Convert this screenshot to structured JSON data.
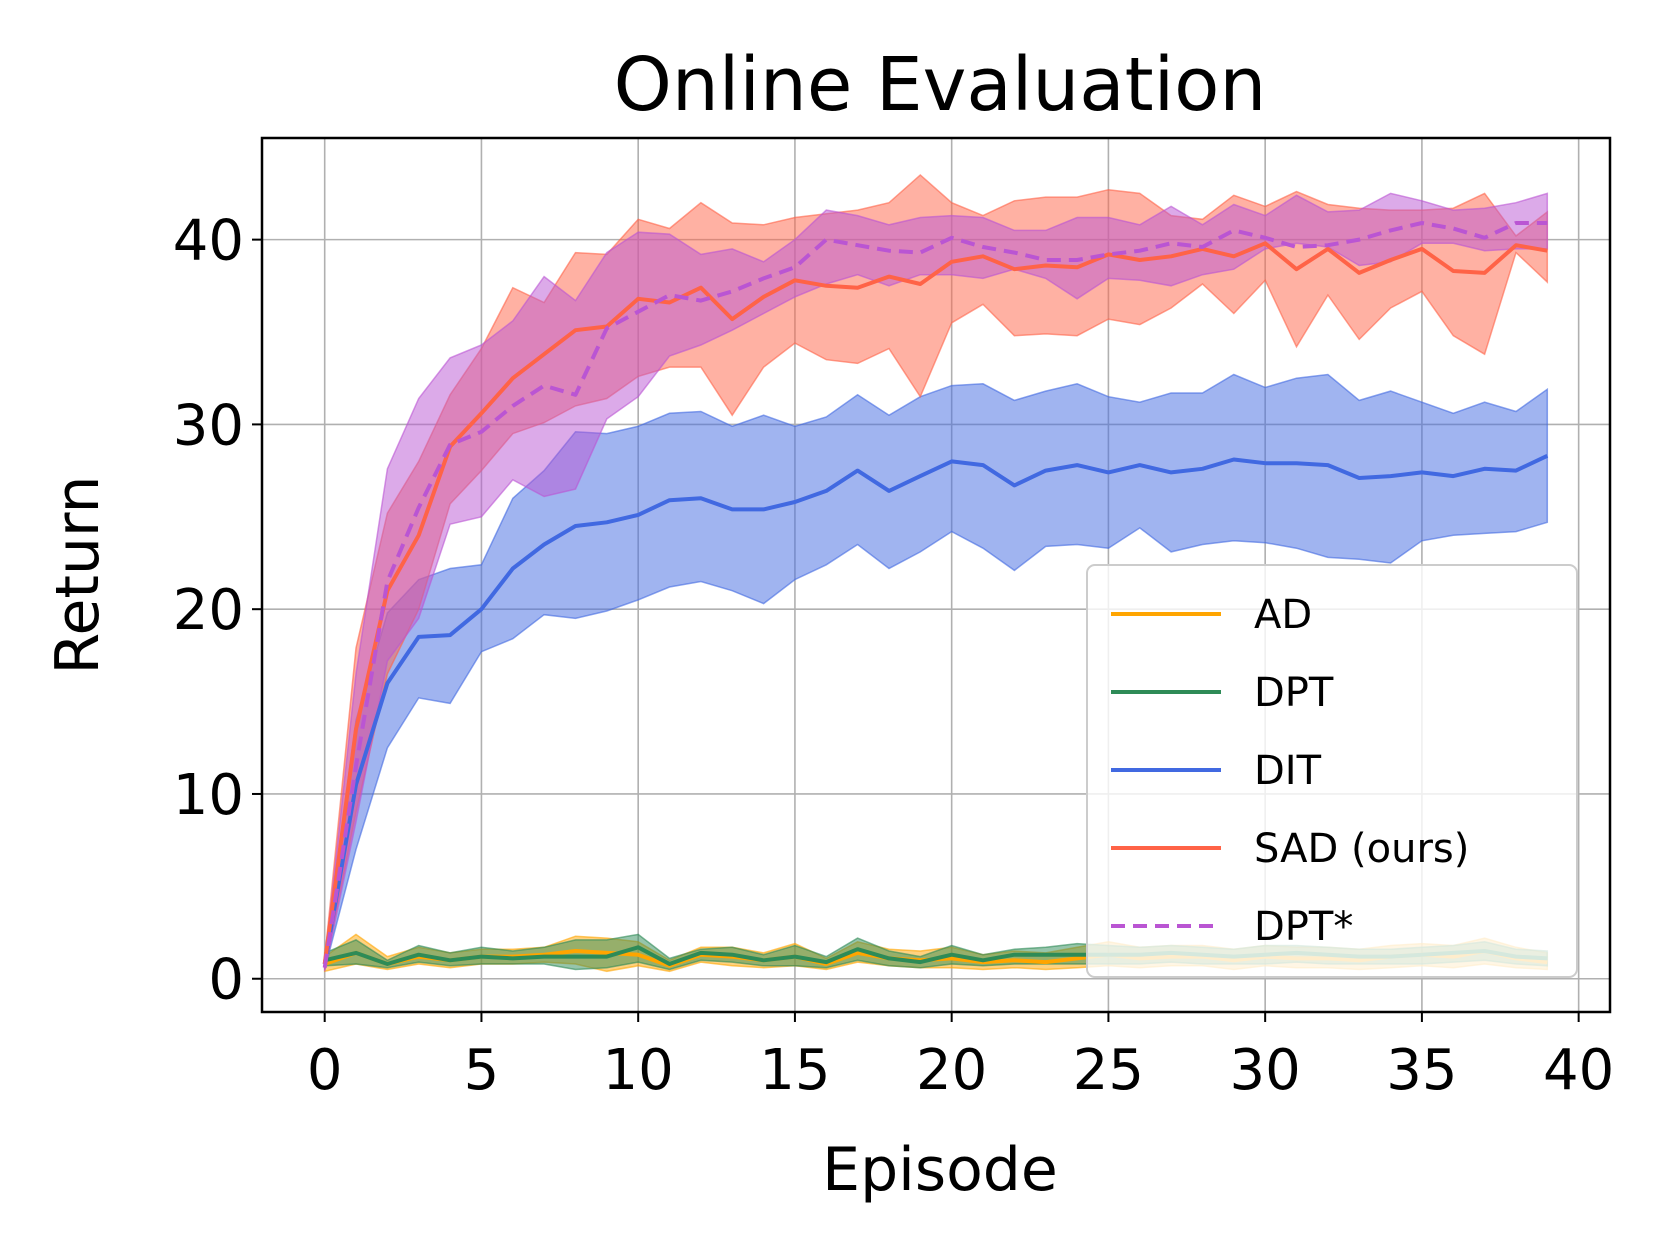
{
  "chart_data": {
    "type": "line",
    "title": "Online Evaluation",
    "xlabel": "Episode",
    "ylabel": "Return",
    "xlim": [
      -2,
      41
    ],
    "ylim": [
      -1.8,
      45.5
    ],
    "xticks": [
      0,
      5,
      10,
      15,
      20,
      25,
      30,
      35,
      40
    ],
    "yticks": [
      0,
      10,
      20,
      30,
      40
    ],
    "grid": true,
    "legend_position": "lower-right",
    "x": [
      0,
      1,
      2,
      3,
      4,
      5,
      6,
      7,
      8,
      9,
      10,
      11,
      12,
      13,
      14,
      15,
      16,
      17,
      18,
      19,
      20,
      21,
      22,
      23,
      24,
      25,
      26,
      27,
      28,
      29,
      30,
      31,
      32,
      33,
      34,
      35,
      36,
      37,
      38,
      39
    ],
    "series": [
      {
        "name": "AD",
        "color": "#FFA500",
        "style": "solid",
        "values": [
          0.8,
          1.4,
          0.8,
          1.2,
          1.0,
          1.2,
          1.2,
          1.3,
          1.5,
          1.4,
          1.3,
          0.7,
          1.3,
          1.2,
          1.0,
          1.2,
          0.8,
          1.4,
          1.1,
          1.0,
          1.1,
          0.9,
          1.0,
          0.9,
          1.1,
          1.3,
          1.1,
          1.2,
          1.2,
          1.0,
          1.2,
          1.1,
          1.1,
          1.0,
          1.2,
          1.3,
          1.2,
          1.5,
          1.1,
          0.9
        ],
        "lower": [
          0.4,
          0.8,
          0.5,
          0.8,
          0.6,
          0.8,
          0.8,
          0.9,
          0.8,
          0.4,
          0.7,
          0.4,
          0.9,
          0.7,
          0.6,
          0.7,
          0.5,
          0.9,
          0.7,
          0.6,
          0.6,
          0.5,
          0.6,
          0.5,
          0.6,
          0.7,
          0.6,
          0.7,
          0.7,
          0.5,
          0.7,
          0.6,
          0.6,
          0.5,
          0.6,
          0.7,
          0.6,
          0.8,
          0.6,
          0.5
        ],
        "upper": [
          1.2,
          2.4,
          1.2,
          1.7,
          1.4,
          1.6,
          1.6,
          1.7,
          2.3,
          2.2,
          2.0,
          1.0,
          1.7,
          1.7,
          1.4,
          1.9,
          1.1,
          2.0,
          1.6,
          1.5,
          1.7,
          1.3,
          1.5,
          1.4,
          1.7,
          2.0,
          1.7,
          1.8,
          1.8,
          1.6,
          1.8,
          1.7,
          1.7,
          1.6,
          1.8,
          1.9,
          1.8,
          2.2,
          1.7,
          1.4
        ]
      },
      {
        "name": "DPT",
        "color": "#2E8B57",
        "style": "solid",
        "values": [
          1.0,
          1.4,
          0.8,
          1.3,
          1.0,
          1.2,
          1.1,
          1.2,
          1.2,
          1.2,
          1.7,
          0.8,
          1.4,
          1.3,
          1.0,
          1.2,
          0.9,
          1.6,
          1.1,
          0.9,
          1.3,
          1.0,
          1.3,
          1.3,
          1.3,
          1.3,
          1.3,
          1.4,
          1.3,
          1.2,
          1.3,
          1.4,
          1.3,
          1.2,
          1.2,
          1.3,
          1.4,
          1.5,
          1.2,
          1.1
        ],
        "lower": [
          0.7,
          0.8,
          0.6,
          0.9,
          0.7,
          0.8,
          0.8,
          0.8,
          0.5,
          0.6,
          0.9,
          0.5,
          1.0,
          0.9,
          0.7,
          0.7,
          0.6,
          1.0,
          0.7,
          0.6,
          0.8,
          0.7,
          0.8,
          0.8,
          0.8,
          0.8,
          0.8,
          0.9,
          0.8,
          0.8,
          0.8,
          0.9,
          0.8,
          0.8,
          0.8,
          0.8,
          0.9,
          1.0,
          0.8,
          0.7
        ],
        "upper": [
          1.4,
          2.1,
          1.0,
          1.8,
          1.4,
          1.7,
          1.5,
          1.7,
          2.1,
          2.1,
          2.4,
          1.1,
          1.6,
          1.7,
          1.3,
          1.8,
          1.2,
          2.2,
          1.5,
          1.2,
          1.8,
          1.3,
          1.6,
          1.7,
          1.9,
          1.8,
          1.7,
          1.8,
          1.7,
          1.6,
          1.8,
          1.8,
          1.7,
          1.6,
          1.6,
          1.7,
          1.8,
          2.0,
          1.6,
          1.5
        ]
      },
      {
        "name": "DIT",
        "color": "#4169E1",
        "style": "solid",
        "values": [
          0.8,
          10.5,
          16.0,
          18.5,
          18.6,
          20.0,
          22.2,
          23.5,
          24.5,
          24.7,
          25.1,
          25.9,
          26.0,
          25.4,
          25.4,
          25.8,
          26.4,
          27.5,
          26.4,
          27.2,
          28.0,
          27.8,
          26.7,
          27.5,
          27.8,
          27.4,
          27.8,
          27.4,
          27.6,
          28.1,
          27.9,
          27.9,
          27.8,
          27.1,
          27.2,
          27.4,
          27.2,
          27.6,
          27.5,
          28.3
        ],
        "lower": [
          0.5,
          7.0,
          12.5,
          15.2,
          14.9,
          17.7,
          18.4,
          19.7,
          19.5,
          19.9,
          20.5,
          21.2,
          21.5,
          21.0,
          20.3,
          21.6,
          22.4,
          23.5,
          22.2,
          23.1,
          24.2,
          23.3,
          22.1,
          23.4,
          23.5,
          23.3,
          24.4,
          23.1,
          23.5,
          23.7,
          23.6,
          23.3,
          22.8,
          22.7,
          22.5,
          23.7,
          24.0,
          24.1,
          24.2,
          24.7
        ],
        "upper": [
          1.1,
          14.0,
          19.8,
          21.6,
          22.2,
          22.4,
          26.0,
          27.5,
          29.6,
          29.5,
          29.9,
          30.6,
          30.7,
          29.9,
          30.5,
          29.9,
          30.4,
          31.6,
          30.5,
          31.5,
          32.1,
          32.2,
          31.3,
          31.8,
          32.2,
          31.5,
          31.2,
          31.7,
          31.7,
          32.7,
          32.0,
          32.5,
          32.7,
          31.3,
          31.8,
          31.2,
          30.6,
          31.2,
          30.7,
          31.9
        ]
      },
      {
        "name": "SAD (ours)",
        "color": "#FF6347",
        "style": "solid",
        "values": [
          0.8,
          13.5,
          21.0,
          24.0,
          28.8,
          30.6,
          32.5,
          33.8,
          35.1,
          35.3,
          36.8,
          36.6,
          37.4,
          35.7,
          36.9,
          37.8,
          37.5,
          37.4,
          38.0,
          37.6,
          38.8,
          39.1,
          38.4,
          38.6,
          38.5,
          39.2,
          38.9,
          39.1,
          39.5,
          39.1,
          39.8,
          38.4,
          39.5,
          38.2,
          38.9,
          39.5,
          38.3,
          38.2,
          39.7,
          39.4
        ],
        "lower": [
          0.5,
          9.0,
          16.5,
          20.0,
          25.7,
          27.5,
          29.5,
          30.1,
          31.0,
          31.4,
          32.6,
          33.1,
          33.1,
          30.5,
          33.1,
          34.4,
          33.5,
          33.3,
          34.1,
          31.5,
          35.5,
          36.5,
          34.8,
          34.9,
          34.8,
          35.7,
          35.4,
          36.3,
          37.6,
          36.0,
          37.8,
          34.2,
          37.0,
          34.6,
          36.3,
          37.2,
          34.8,
          33.8,
          39.3,
          37.7
        ],
        "upper": [
          1.1,
          17.9,
          25.2,
          28.0,
          31.6,
          34.1,
          37.4,
          36.6,
          39.3,
          39.2,
          41.1,
          40.6,
          42.0,
          40.9,
          40.8,
          41.2,
          41.4,
          41.6,
          42.0,
          43.5,
          42.0,
          41.3,
          42.1,
          42.3,
          42.3,
          42.7,
          42.5,
          41.3,
          41.1,
          42.4,
          41.8,
          42.6,
          41.9,
          41.7,
          41.6,
          41.6,
          41.7,
          42.5,
          40.2,
          41.5
        ]
      },
      {
        "name": "DPT*",
        "color": "#BA55D3",
        "style": "dashed",
        "values": [
          0.6,
          11.5,
          21.5,
          25.5,
          28.9,
          29.6,
          31.0,
          32.1,
          31.6,
          35.2,
          36.1,
          37.0,
          36.7,
          37.2,
          37.9,
          38.5,
          40.0,
          39.7,
          39.4,
          39.3,
          40.1,
          39.6,
          39.3,
          38.9,
          38.9,
          39.2,
          39.4,
          39.8,
          39.6,
          40.5,
          40.1,
          39.6,
          39.7,
          40.0,
          40.5,
          40.9,
          40.6,
          40.1,
          40.9,
          40.9
        ],
        "lower": [
          0.4,
          8.5,
          17.2,
          19.5,
          24.6,
          25.0,
          27.0,
          26.1,
          26.5,
          30.3,
          31.5,
          33.7,
          34.3,
          35.1,
          36.0,
          36.9,
          37.6,
          38.1,
          37.5,
          38.1,
          38.1,
          37.9,
          38.4,
          37.9,
          36.8,
          37.9,
          37.8,
          37.5,
          38.1,
          38.4,
          39.5,
          39.8,
          39.6,
          38.6,
          38.8,
          39.8,
          39.8,
          39.4,
          39.5,
          39.5
        ],
        "upper": [
          0.9,
          16.5,
          27.6,
          31.4,
          33.6,
          34.3,
          35.6,
          38.0,
          36.7,
          39.3,
          40.4,
          40.3,
          39.2,
          39.5,
          38.8,
          40.0,
          41.6,
          41.3,
          40.8,
          41.2,
          41.3,
          41.2,
          40.5,
          40.5,
          41.2,
          41.2,
          40.8,
          41.8,
          40.8,
          41.9,
          41.3,
          42.4,
          41.5,
          41.6,
          42.5,
          42.1,
          41.6,
          41.7,
          42.0,
          42.5
        ]
      }
    ]
  }
}
